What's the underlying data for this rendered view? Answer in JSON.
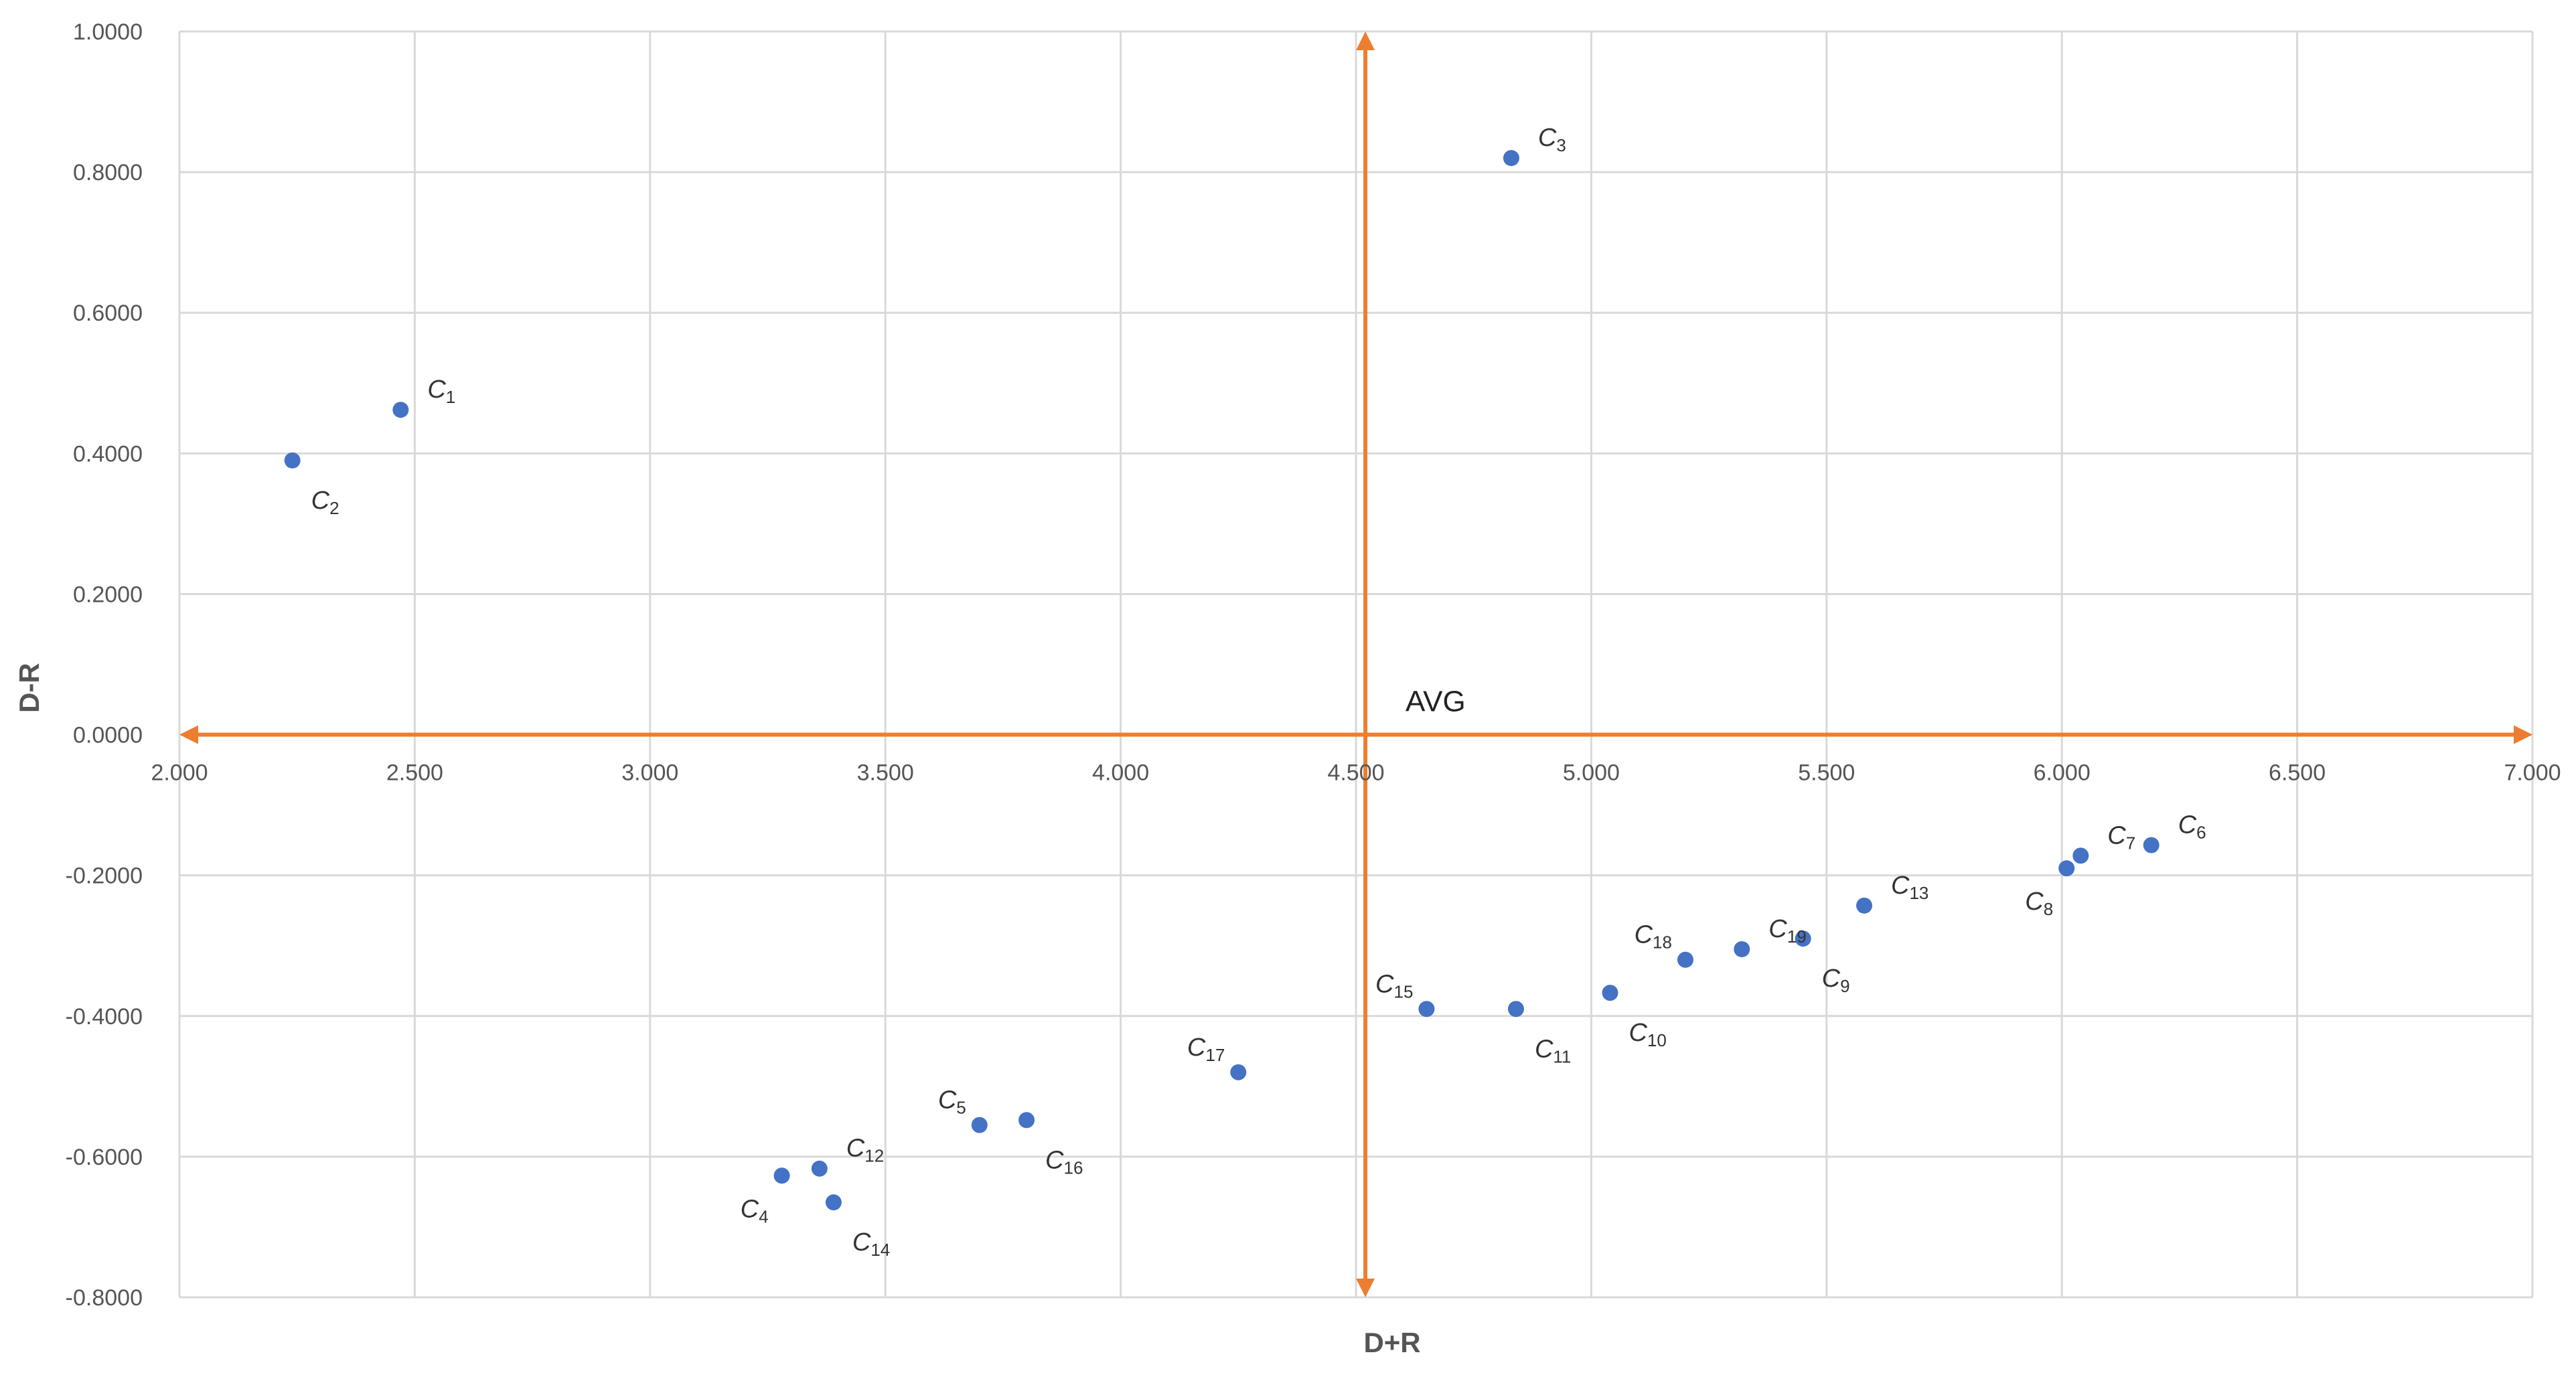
{
  "chart_data": {
    "type": "scatter",
    "title": "",
    "xlabel": "D+R",
    "ylabel": "D-R",
    "xlim": [
      2.0,
      7.0
    ],
    "ylim": [
      -0.8,
      1.0
    ],
    "x_ticks": [
      2.0,
      2.5,
      3.0,
      3.5,
      4.0,
      4.5,
      5.0,
      5.5,
      6.0,
      6.5,
      7.0
    ],
    "x_tick_labels": [
      "2.000",
      "2.500",
      "3.000",
      "3.500",
      "4.000",
      "4.500",
      "5.000",
      "5.500",
      "6.000",
      "6.500",
      "7.000"
    ],
    "y_ticks": [
      1.0,
      0.8,
      0.6,
      0.4,
      0.2,
      0.0,
      -0.2,
      -0.4,
      -0.6,
      -0.8
    ],
    "y_tick_labels": [
      "1.0000",
      "0.8000",
      "0.6000",
      "0.4000",
      "0.2000",
      "0.0000",
      "-0.2000",
      "-0.4000",
      "-0.6000",
      "-0.8000"
    ],
    "grid": true,
    "legend": "none",
    "reference_lines": {
      "vertical_x": 4.52,
      "horizontal_y": 0.0,
      "label": "AVG",
      "color": "#ED7D31"
    },
    "marker_color": "#4472C4",
    "points": [
      {
        "name": "C",
        "sub": "1",
        "x": 2.47,
        "y": 0.462,
        "label_pos": "top-right"
      },
      {
        "name": "C",
        "sub": "2",
        "x": 2.24,
        "y": 0.39,
        "label_pos": "bottom-right"
      },
      {
        "name": "C",
        "sub": "3",
        "x": 4.83,
        "y": 0.82,
        "label_pos": "top-right"
      },
      {
        "name": "C",
        "sub": "4",
        "x": 3.28,
        "y": -0.627,
        "label_pos": "bottom-left"
      },
      {
        "name": "C",
        "sub": "5",
        "x": 3.7,
        "y": -0.555,
        "label_pos": "top-left"
      },
      {
        "name": "C",
        "sub": "6",
        "x": 6.19,
        "y": -0.157,
        "label_pos": "top-right"
      },
      {
        "name": "C",
        "sub": "7",
        "x": 6.04,
        "y": -0.172,
        "label_pos": "top-right"
      },
      {
        "name": "C",
        "sub": "8",
        "x": 6.01,
        "y": -0.19,
        "label_pos": "bottom-left"
      },
      {
        "name": "C",
        "sub": "9",
        "x": 5.45,
        "y": -0.29,
        "label_pos": "bottom-right"
      },
      {
        "name": "C",
        "sub": "10",
        "x": 5.04,
        "y": -0.367,
        "label_pos": "bottom-right"
      },
      {
        "name": "C",
        "sub": "11",
        "x": 4.84,
        "y": -0.39,
        "label_pos": "bottom-right"
      },
      {
        "name": "C",
        "sub": "12",
        "x": 3.36,
        "y": -0.617,
        "label_pos": "top-right"
      },
      {
        "name": "C",
        "sub": "13",
        "x": 5.58,
        "y": -0.243,
        "label_pos": "top-right"
      },
      {
        "name": "C",
        "sub": "14",
        "x": 3.39,
        "y": -0.665,
        "label_pos": "bottom-right"
      },
      {
        "name": "C",
        "sub": "15",
        "x": 4.65,
        "y": -0.39,
        "label_pos": "top-left"
      },
      {
        "name": "C",
        "sub": "16",
        "x": 3.8,
        "y": -0.548,
        "label_pos": "bottom-right"
      },
      {
        "name": "C",
        "sub": "17",
        "x": 4.25,
        "y": -0.48,
        "label_pos": "top-left"
      },
      {
        "name": "C",
        "sub": "18",
        "x": 5.2,
        "y": -0.32,
        "label_pos": "top-left"
      },
      {
        "name": "C",
        "sub": "19",
        "x": 5.32,
        "y": -0.305,
        "label_pos": "top-right"
      }
    ]
  },
  "colors": {
    "grid": "#D9D9D9",
    "axis_text": "#595959",
    "background": "#FFFFFF"
  }
}
